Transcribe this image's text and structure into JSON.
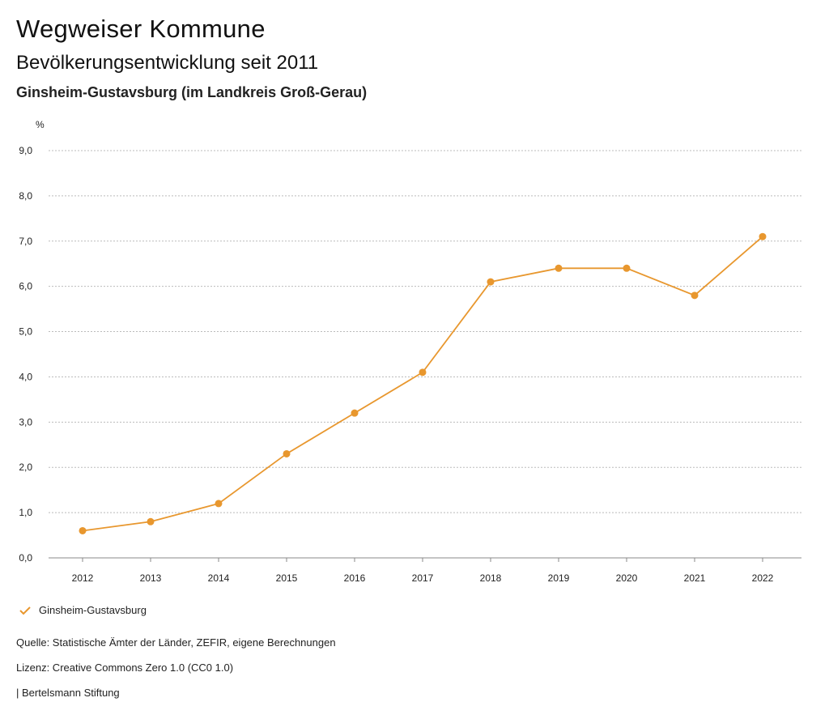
{
  "header": {
    "title": "Wegweiser Kommune",
    "subtitle": "Bevölkerungsentwicklung seit 2011",
    "region": "Ginsheim-Gustavsburg (im Landkreis Groß-Gerau)"
  },
  "chart_data": {
    "type": "line",
    "ylabel": "%",
    "xlabel": "",
    "ylim": [
      0,
      9
    ],
    "yticks": [
      "0,0",
      "1,0",
      "2,0",
      "3,0",
      "4,0",
      "5,0",
      "6,0",
      "7,0",
      "8,0",
      "9,0"
    ],
    "categories": [
      "2012",
      "2013",
      "2014",
      "2015",
      "2016",
      "2017",
      "2018",
      "2019",
      "2020",
      "2021",
      "2022"
    ],
    "series": [
      {
        "name": "Ginsheim-Gustavsburg",
        "values": [
          0.6,
          0.8,
          1.2,
          2.3,
          3.2,
          4.1,
          6.1,
          6.4,
          6.4,
          5.8,
          7.1
        ]
      }
    ],
    "grid": true,
    "legend": "bottom-left",
    "color": "#E8972E"
  },
  "footer": {
    "source": "Quelle: Statistische Ämter der Länder, ZEFIR, eigene Berechnungen",
    "license": "Lizenz: Creative Commons Zero 1.0 (CC0 1.0)",
    "publisher": "| Bertelsmann Stiftung"
  }
}
